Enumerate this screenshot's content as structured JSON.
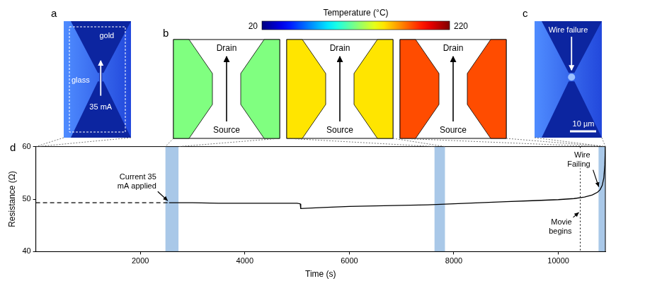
{
  "figure": {
    "panel_a": {
      "letter": "a",
      "labels": {
        "electrode": "gold",
        "substrate": "glass",
        "current": "35 mA"
      }
    },
    "panel_b": {
      "letter": "b",
      "colorbar": {
        "label": "Temperature (°C)",
        "range": [
          20,
          220
        ],
        "ticks": [
          20,
          220
        ]
      },
      "maps": [
        {
          "top": "Drain",
          "bottom": "Source",
          "temperature": 120
        },
        {
          "top": "Drain",
          "bottom": "Source",
          "temperature": 150
        },
        {
          "top": "Drain",
          "bottom": "Source",
          "temperature": 180
        }
      ]
    },
    "panel_c": {
      "letter": "c",
      "label": "Wire failure",
      "scale_bar": "10 µm"
    },
    "panel_d": {
      "letter": "d"
    }
  },
  "chart_data": {
    "type": "line",
    "x_label": "Time (s)",
    "y_label": "Resistance (Ω)",
    "xlim": [
      0,
      10900
    ],
    "xticks": [
      2000,
      4000,
      6000,
      8000,
      10000
    ],
    "ylim": [
      40,
      60
    ],
    "yticks": [
      40,
      50,
      60
    ],
    "grid": false,
    "series": [
      {
        "color": "#000000",
        "line_style": "dashed",
        "x": [
          0,
          2550
        ],
        "values": [
          49.3,
          49.3
        ]
      },
      {
        "color": "#000000",
        "line_style": "solid",
        "x": [
          2550,
          3000,
          3500,
          4000,
          4500,
          5000,
          5060,
          5070,
          5500,
          6000,
          6500,
          7000,
          7500,
          8000,
          8500,
          9000,
          9500,
          10000,
          10300,
          10500,
          10650,
          10750,
          10800,
          10840,
          10870,
          10890,
          10900
        ],
        "values": [
          49.3,
          49.3,
          49.2,
          49.2,
          49.2,
          49.2,
          49.1,
          48.2,
          48.4,
          48.6,
          48.7,
          48.8,
          48.9,
          49.1,
          49.3,
          49.5,
          49.7,
          49.9,
          50.1,
          50.4,
          50.8,
          51.3,
          51.8,
          52.6,
          54.0,
          56.5,
          60.0
        ]
      }
    ],
    "bands": {
      "color": "#a9c8e8",
      "ranges": [
        [
          2480,
          2730
        ],
        [
          7630,
          7830
        ],
        [
          10770,
          10900
        ]
      ]
    },
    "annotations": [
      {
        "text": "Current 35 mA applied",
        "x": 2550,
        "y": 49.3
      },
      {
        "text": "Wire Failing",
        "x": 10800,
        "y": 51.8
      },
      {
        "text": "Movie begins",
        "x": 10420,
        "line_style": "dotted"
      }
    ]
  }
}
